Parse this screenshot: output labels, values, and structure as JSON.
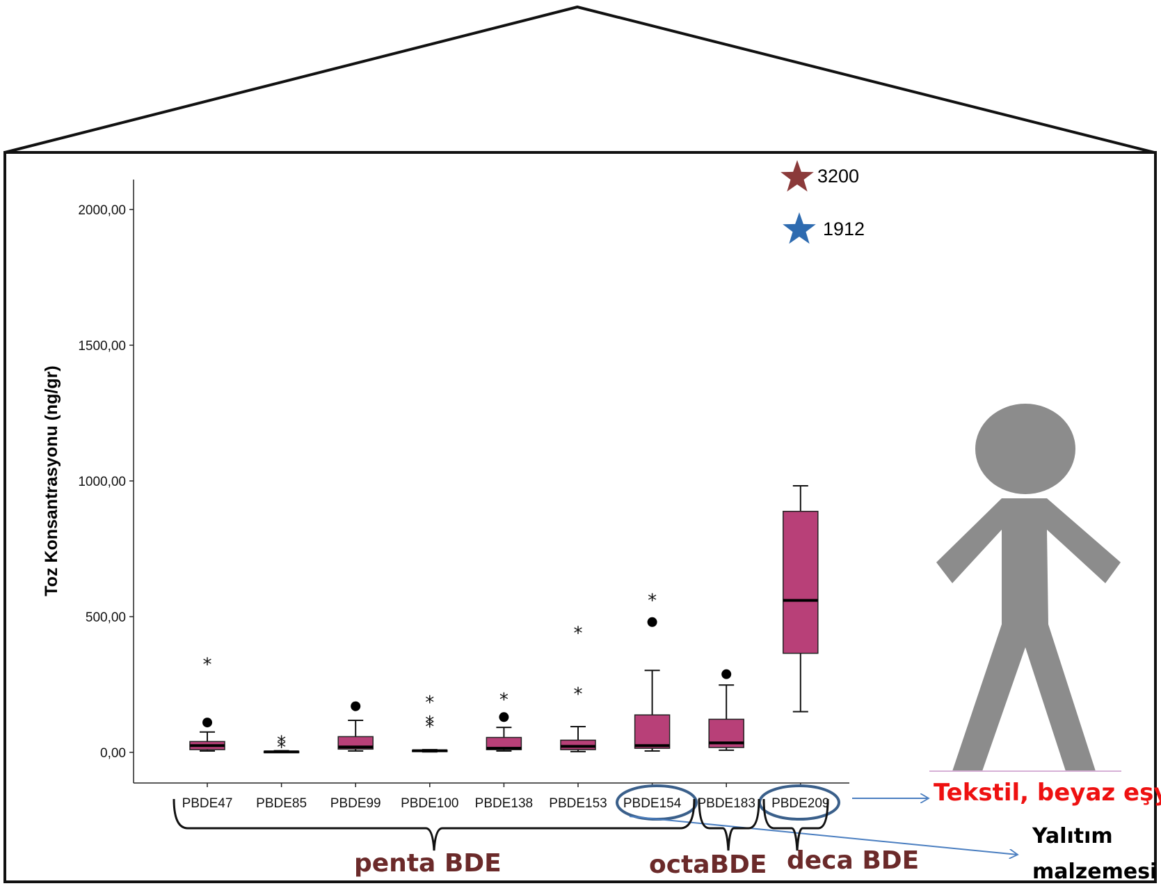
{
  "chart_data": {
    "type": "box",
    "ylabel": "Toz Konsantrasyonu (ng/gr)",
    "yticks": [
      "0,00",
      "500,00",
      "1000,00",
      "1500,00",
      "2000,00"
    ],
    "ytick_values": [
      0,
      500,
      1000,
      1500,
      2000
    ],
    "ylim": [
      -110,
      2120
    ],
    "categories": [
      "PBDE47",
      "PBDE85",
      "PBDE99",
      "PBDE100",
      "PBDE138",
      "PBDE153",
      "PBDE154",
      "PBDE183",
      "PBDE209"
    ],
    "boxes": [
      {
        "name": "PBDE47",
        "whisker_low": 5,
        "q1": 10,
        "median": 25,
        "q3": 40,
        "whisker_high": 75,
        "outliers_circle": [
          110
        ],
        "outliers_star": [
          330
        ]
      },
      {
        "name": "PBDE85",
        "whisker_low": 0,
        "q1": 0,
        "median": 2,
        "q3": 4,
        "whisker_high": 6,
        "outliers_circle": [],
        "outliers_star": [
          25,
          42
        ]
      },
      {
        "name": "PBDE99",
        "whisker_low": 5,
        "q1": 12,
        "median": 20,
        "q3": 58,
        "whisker_high": 118,
        "outliers_circle": [
          170
        ],
        "outliers_star": []
      },
      {
        "name": "PBDE100",
        "whisker_low": 2,
        "q1": 4,
        "median": 6,
        "q3": 8,
        "whisker_high": 10,
        "outliers_circle": [],
        "outliers_star": [
          100,
          115,
          190
        ]
      },
      {
        "name": "PBDE138",
        "whisker_low": 5,
        "q1": 10,
        "median": 15,
        "q3": 55,
        "whisker_high": 92,
        "outliers_circle": [
          130
        ],
        "outliers_star": [
          200
        ]
      },
      {
        "name": "PBDE153",
        "whisker_low": 3,
        "q1": 10,
        "median": 22,
        "q3": 45,
        "whisker_high": 95,
        "outliers_circle": [],
        "outliers_star": [
          220,
          445
        ]
      },
      {
        "name": "PBDE154",
        "whisker_low": 5,
        "q1": 15,
        "median": 25,
        "q3": 138,
        "whisker_high": 302,
        "outliers_circle": [
          480
        ],
        "outliers_star": [
          565
        ]
      },
      {
        "name": "PBDE183",
        "whisker_low": 8,
        "q1": 18,
        "median": 35,
        "q3": 122,
        "whisker_high": 248,
        "outliers_circle": [
          288
        ],
        "outliers_star": []
      },
      {
        "name": "PBDE209",
        "whisker_low": 150,
        "q1": 365,
        "median": 560,
        "q3": 888,
        "whisker_high": 982,
        "outliers_circle": [],
        "outliers_star": []
      }
    ],
    "extreme_markers": [
      {
        "label": "3200",
        "color": "#8b3a3a"
      },
      {
        "label": "1912",
        "color": "#2e6bb0"
      }
    ],
    "box_color": "#b84078"
  },
  "groups": [
    {
      "label": "penta BDE"
    },
    {
      "label": "octaBDE"
    },
    {
      "label": "deca BDE"
    }
  ],
  "annotations": {
    "pbde209_source": "Tekstil, beyaz eşya",
    "pbde154_source_line1": "Yalıtım",
    "pbde154_source_line2": "malzemesi"
  },
  "colors": {
    "figure": "#8c8c8c",
    "arrow": "#4a7ec0",
    "ellipse": "#3a5f8a"
  }
}
